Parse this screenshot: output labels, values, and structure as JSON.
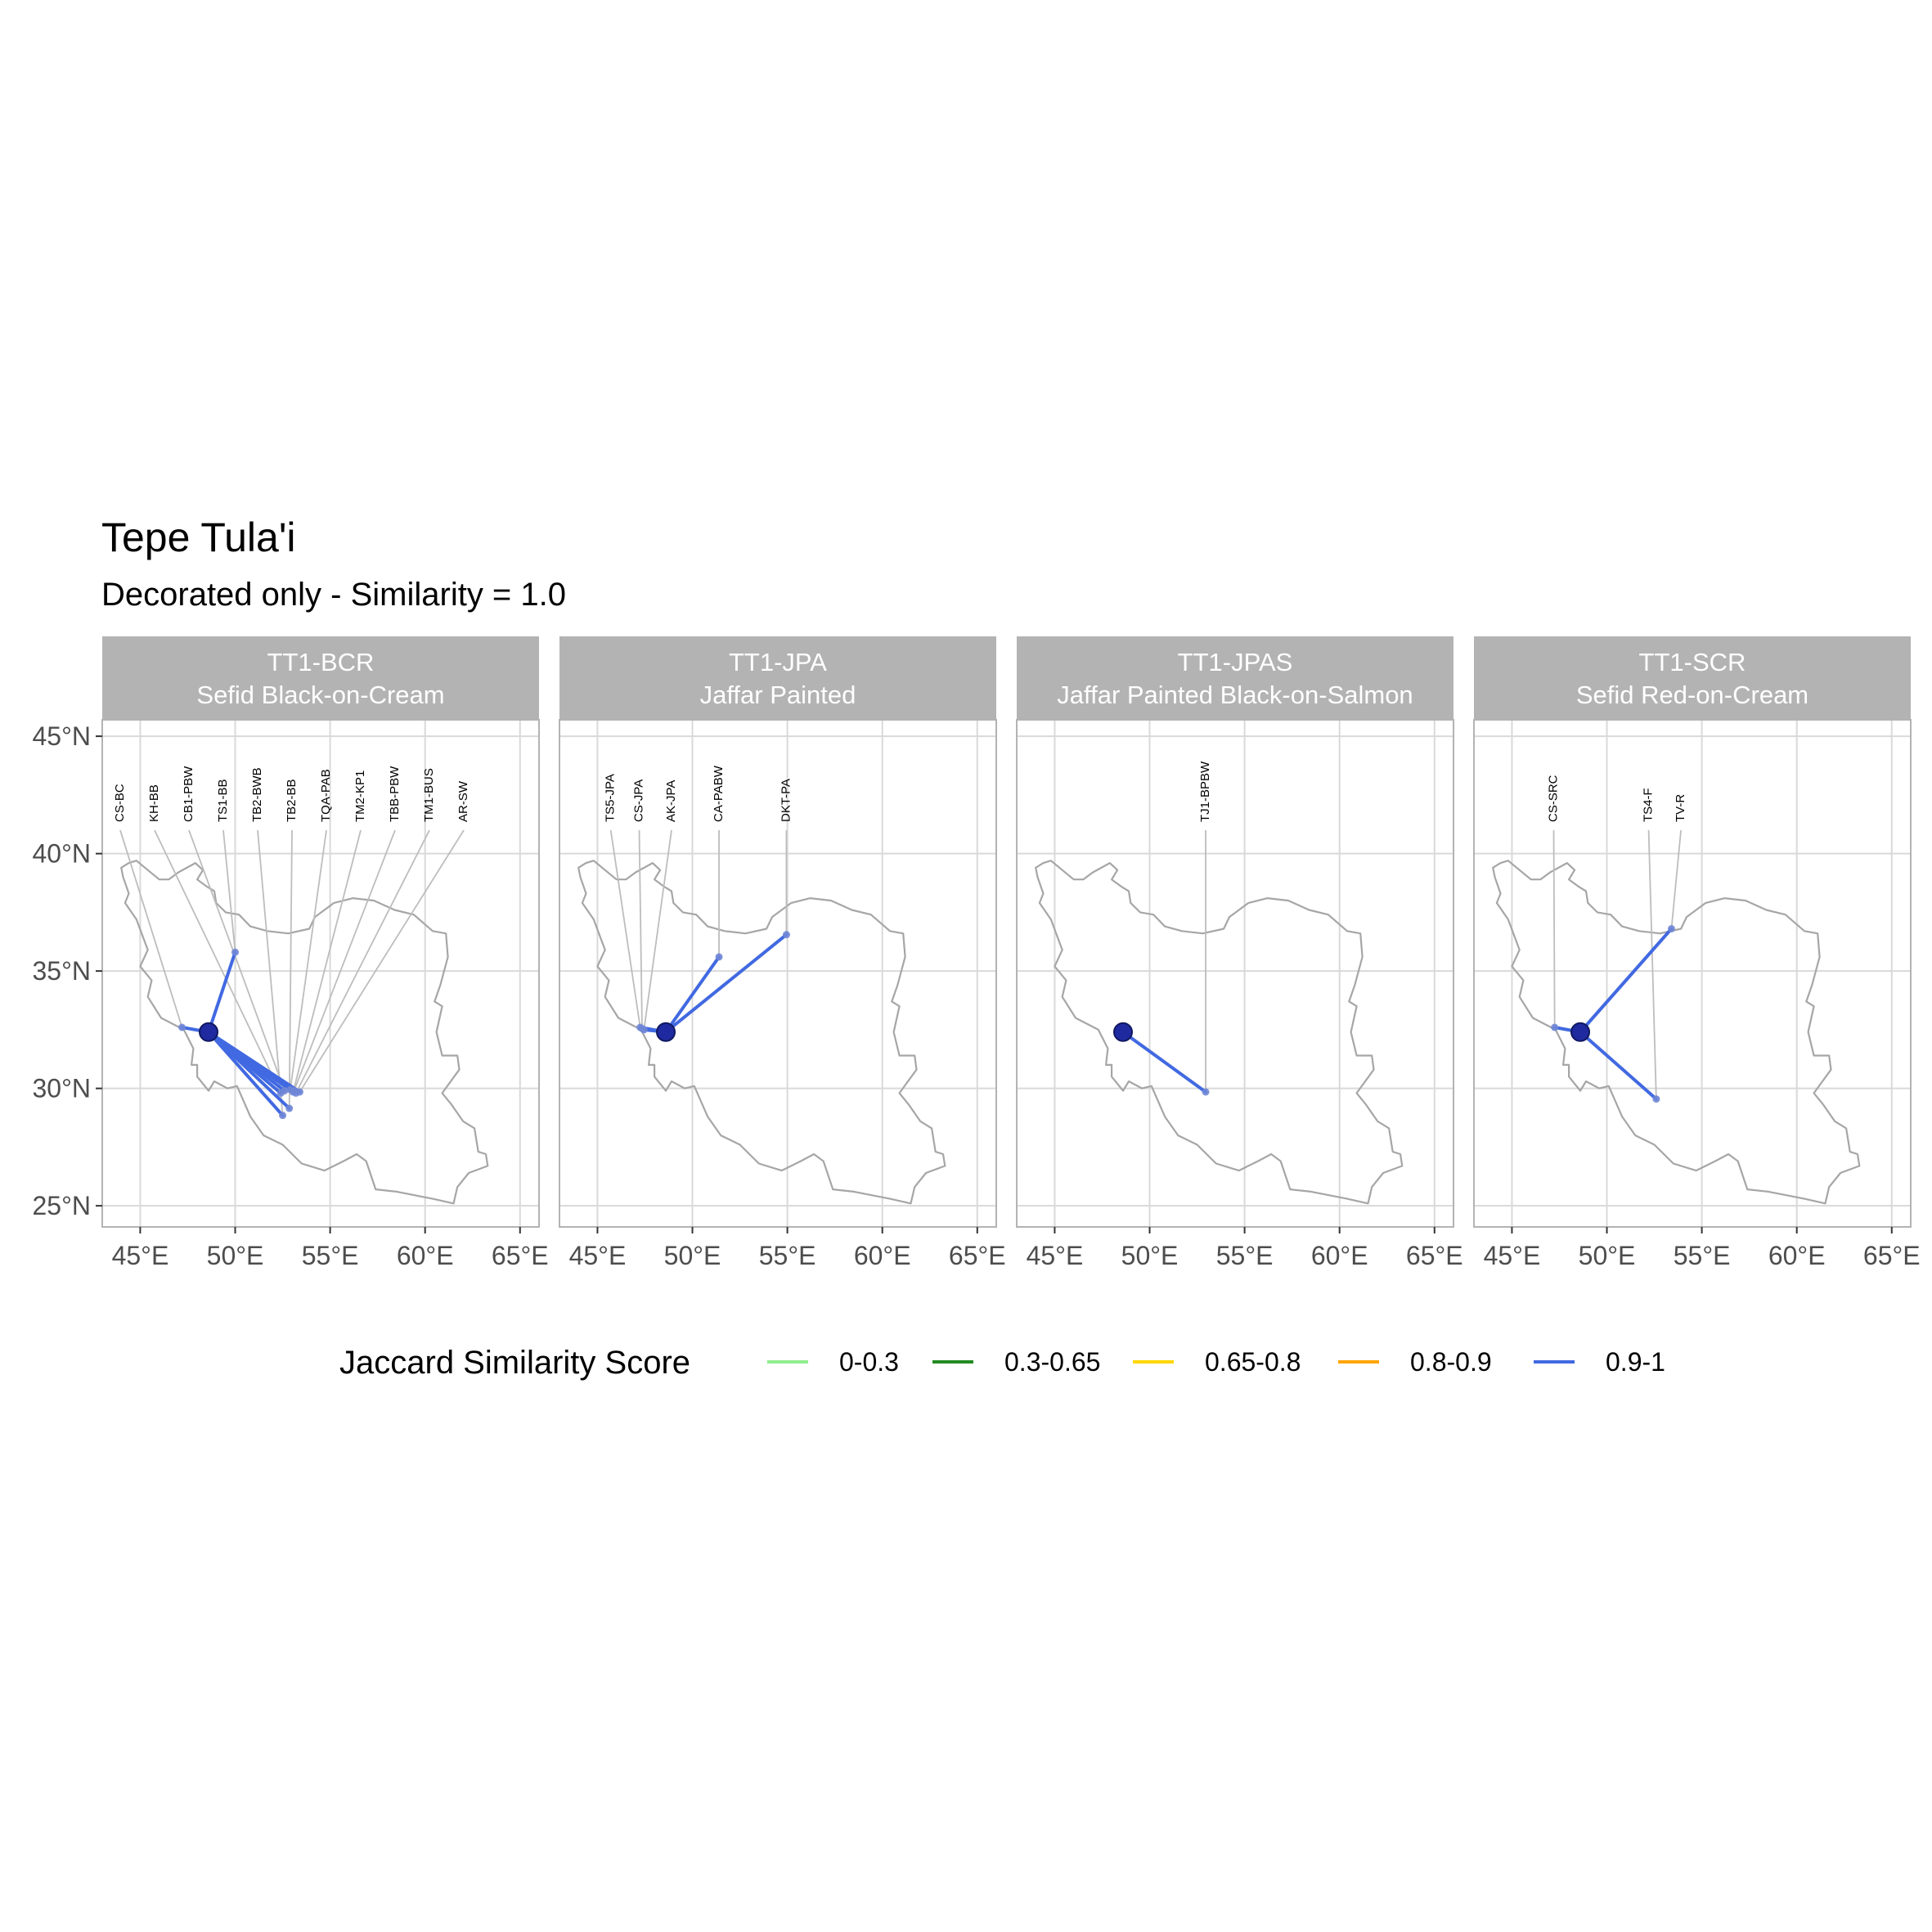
{
  "title": "Tepe Tula'i",
  "subtitle": "Decorated only - Similarity = 1.0",
  "chart_data": {
    "type": "map",
    "x_ticks": [
      45,
      50,
      55,
      60,
      65
    ],
    "x_tick_labels": [
      "45°E",
      "50°E",
      "55°E",
      "60°E",
      "65°E"
    ],
    "y_ticks": [
      25,
      30,
      35,
      40,
      45
    ],
    "y_tick_labels": [
      "25°N",
      "30°N",
      "35°N",
      "40°N",
      "45°N"
    ],
    "xlim": [
      43,
      66
    ],
    "ylim": [
      24.1,
      45.7
    ],
    "grid": true,
    "source_site": {
      "lon": 48.6,
      "lat": 32.4
    },
    "legend": {
      "title": "Jaccard Similarity Score",
      "position": "bottom",
      "items": [
        {
          "label": "0-0.3",
          "color": "#90ee90"
        },
        {
          "label": "0.3-0.65",
          "color": "#228b22"
        },
        {
          "label": "0.65-0.8",
          "color": "#ffd700"
        },
        {
          "label": "0.8-0.9",
          "color": "#ffa500"
        },
        {
          "label": "0.9-1",
          "color": "#4169e1"
        }
      ]
    },
    "panels": [
      {
        "strip_line1": "TT1-BCR",
        "strip_line2": "Sefid Black-on-Cream",
        "links": [
          {
            "label": "CS-BC",
            "lon": 47.2,
            "lat": 32.6,
            "score": "0.9-1"
          },
          {
            "label": "KH-BB",
            "lon": 52.4,
            "lat": 29.8,
            "score": "0.9-1"
          },
          {
            "label": "CB1-PBW",
            "lon": 52.6,
            "lat": 29.9,
            "score": "0.9-1"
          },
          {
            "label": "TS1-BB",
            "lon": 50.0,
            "lat": 35.8,
            "score": "0.9-1"
          },
          {
            "label": "TB2-BWB",
            "lon": 52.5,
            "lat": 28.85,
            "score": "0.9-1"
          },
          {
            "label": "TB2-BB",
            "lon": 52.85,
            "lat": 29.15,
            "score": "0.9-1"
          },
          {
            "label": "TQA-PAB",
            "lon": 52.9,
            "lat": 29.95,
            "score": "0.9-1"
          },
          {
            "label": "TM2-KP1",
            "lon": 53.05,
            "lat": 29.85,
            "score": "0.9-1"
          },
          {
            "label": "TBB-PBW",
            "lon": 53.1,
            "lat": 29.9,
            "score": "0.9-1"
          },
          {
            "label": "TM1-BUS",
            "lon": 53.2,
            "lat": 29.8,
            "score": "0.9-1"
          },
          {
            "label": "AR-SW",
            "lon": 53.4,
            "lat": 29.85,
            "score": "0.9-1"
          }
        ]
      },
      {
        "strip_line1": "TT1-JPA",
        "strip_line2": "Jaffar Painted",
        "links": [
          {
            "label": "TS5-JPA",
            "lon": 47.25,
            "lat": 32.6,
            "score": "0.9-1"
          },
          {
            "label": "CS-JPA",
            "lon": 47.35,
            "lat": 32.55,
            "score": "0.9-1"
          },
          {
            "label": "AK-JPA",
            "lon": 47.45,
            "lat": 32.5,
            "score": "0.9-1"
          },
          {
            "label": "CA-PABW",
            "lon": 51.4,
            "lat": 35.6,
            "score": "0.9-1"
          },
          {
            "label": "DKT-PA",
            "lon": 54.95,
            "lat": 36.55,
            "score": "0.9-1"
          }
        ]
      },
      {
        "strip_line1": "TT1-JPAS",
        "strip_line2": "Jaffar Painted Black-on-Salmon",
        "links": [
          {
            "label": "TJ1-BPBW",
            "lon": 52.95,
            "lat": 29.85,
            "score": "0.9-1"
          }
        ]
      },
      {
        "strip_line1": "TT1-SCR",
        "strip_line2": "Sefid Red-on-Cream",
        "links": [
          {
            "label": "CS-SRC",
            "lon": 47.25,
            "lat": 32.6,
            "score": "0.9-1"
          },
          {
            "label": "TS4-F",
            "lon": 52.6,
            "lat": 29.55,
            "score": "0.9-1"
          },
          {
            "label": "TV-R",
            "lon": 53.4,
            "lat": 36.8,
            "score": "0.9-1"
          }
        ]
      }
    ]
  },
  "colors": {
    "strip_bg": "#b3b3b3",
    "strip_text": "#ffffff",
    "grid": "#d9d9d9",
    "border": "#b3b3b3",
    "outline": "#a6a6a6",
    "leader": "#bdbdbd",
    "source_fill": "#1f2aa0",
    "axis_text": "#4d4d4d"
  }
}
